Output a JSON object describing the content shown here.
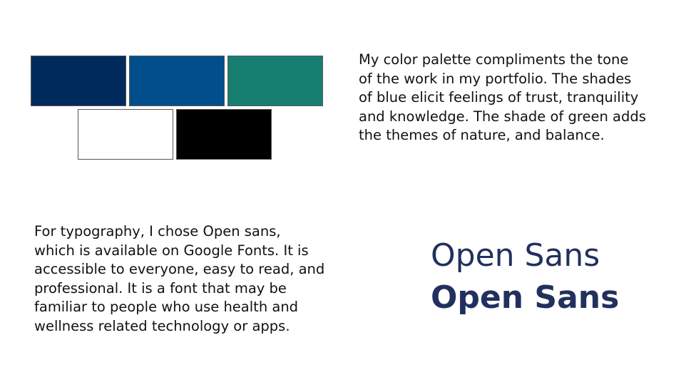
{
  "palette": {
    "swatches": [
      {
        "name": "navy",
        "color": "#002a5c"
      },
      {
        "name": "blue",
        "color": "#004f8c"
      },
      {
        "name": "green",
        "color": "#167f72"
      },
      {
        "name": "white",
        "color": "#ffffff"
      },
      {
        "name": "black",
        "color": "#000000"
      }
    ]
  },
  "palette_description": {
    "lines": [
      "My color palette compliments the tone",
      "of the work in my portfolio. The shades",
      "of blue elicit feelings of trust, tranquility",
      "and knowledge. The shade of green adds",
      "the themes of nature, and balance."
    ]
  },
  "typography_description": {
    "lines": [
      "For typography, I chose Open sans,",
      "which is available on Google Fonts. It is",
      "accessible to everyone, easy to read, and",
      "professional. It is a font that may be",
      "familiar to people who use health and",
      "wellness related technology or apps."
    ]
  },
  "font_samples": {
    "regular": "Open Sans",
    "bold": "Open Sans",
    "color": "#22305f"
  }
}
